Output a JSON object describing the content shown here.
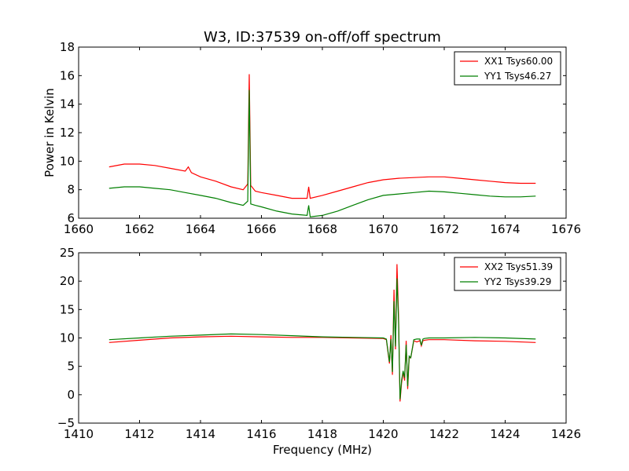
{
  "title": "W3, ID:37539 on-off/off spectrum",
  "colors": {
    "xx": "#ff0000",
    "yy": "#007f00"
  },
  "chart_data": [
    {
      "type": "line",
      "title": "W3, ID:37539 on-off/off spectrum",
      "xlabel": "",
      "ylabel": "Power in Kelvin",
      "xlim": [
        1660,
        1676
      ],
      "ylim": [
        6,
        18
      ],
      "xticks": [
        1660,
        1662,
        1664,
        1666,
        1668,
        1670,
        1672,
        1674,
        1676
      ],
      "yticks": [
        6,
        8,
        10,
        12,
        14,
        16,
        18
      ],
      "legend": "top-right",
      "series": [
        {
          "name": "XX1 Tsys60.00",
          "color": "#ff0000",
          "x": [
            1661.0,
            1661.5,
            1662.0,
            1662.5,
            1663.0,
            1663.5,
            1663.6,
            1663.7,
            1664.0,
            1664.5,
            1665.0,
            1665.4,
            1665.55,
            1665.6,
            1665.65,
            1665.8,
            1666.0,
            1666.5,
            1667.0,
            1667.5,
            1667.55,
            1667.6,
            1668.0,
            1668.5,
            1669.0,
            1669.5,
            1670.0,
            1670.5,
            1671.0,
            1671.5,
            1672.0,
            1672.5,
            1673.0,
            1673.5,
            1674.0,
            1674.5,
            1675.0
          ],
          "y": [
            9.6,
            9.8,
            9.8,
            9.7,
            9.5,
            9.3,
            9.6,
            9.2,
            8.9,
            8.6,
            8.2,
            8.0,
            8.4,
            16.1,
            8.3,
            7.9,
            7.8,
            7.6,
            7.4,
            7.4,
            8.2,
            7.4,
            7.6,
            7.9,
            8.2,
            8.5,
            8.7,
            8.8,
            8.85,
            8.9,
            8.9,
            8.8,
            8.7,
            8.6,
            8.5,
            8.45,
            8.45
          ]
        },
        {
          "name": "YY1 Tsys46.27",
          "color": "#007f00",
          "x": [
            1661.0,
            1661.5,
            1662.0,
            1662.5,
            1663.0,
            1663.5,
            1664.0,
            1664.5,
            1665.0,
            1665.4,
            1665.55,
            1665.6,
            1665.65,
            1665.8,
            1666.0,
            1666.5,
            1667.0,
            1667.5,
            1667.55,
            1667.6,
            1668.0,
            1668.5,
            1669.0,
            1669.5,
            1670.0,
            1670.5,
            1671.0,
            1671.5,
            1672.0,
            1672.5,
            1673.0,
            1673.5,
            1674.0,
            1674.5,
            1675.0
          ],
          "y": [
            8.1,
            8.2,
            8.2,
            8.1,
            8.0,
            7.8,
            7.6,
            7.4,
            7.1,
            6.9,
            7.2,
            15.0,
            7.0,
            6.9,
            6.8,
            6.5,
            6.3,
            6.2,
            6.9,
            6.1,
            6.2,
            6.5,
            6.9,
            7.3,
            7.6,
            7.7,
            7.8,
            7.9,
            7.85,
            7.75,
            7.65,
            7.55,
            7.5,
            7.5,
            7.55
          ]
        }
      ]
    },
    {
      "type": "line",
      "title": "",
      "xlabel": "Frequency (MHz)",
      "ylabel": "",
      "xlim": [
        1410,
        1426
      ],
      "ylim": [
        -5,
        25
      ],
      "xticks": [
        1410,
        1412,
        1414,
        1416,
        1418,
        1420,
        1422,
        1424,
        1426
      ],
      "yticks": [
        -5,
        0,
        5,
        10,
        15,
        20,
        25
      ],
      "legend": "top-right",
      "series": [
        {
          "name": "XX2 Tsys51.39",
          "color": "#ff0000",
          "x": [
            1411.0,
            1412.0,
            1413.0,
            1414.0,
            1415.0,
            1416.0,
            1417.0,
            1418.0,
            1419.0,
            1420.0,
            1420.1,
            1420.2,
            1420.25,
            1420.3,
            1420.35,
            1420.4,
            1420.45,
            1420.5,
            1420.55,
            1420.6,
            1420.65,
            1420.7,
            1420.75,
            1420.8,
            1420.85,
            1420.9,
            1421.0,
            1421.1,
            1421.2,
            1421.25,
            1421.3,
            1421.35,
            1421.5,
            1422.0,
            1423.0,
            1424.0,
            1425.0
          ],
          "y": [
            9.2,
            9.6,
            10.0,
            10.2,
            10.3,
            10.2,
            10.1,
            10.1,
            10.0,
            9.9,
            9.7,
            5.5,
            10.5,
            3.5,
            18.5,
            8.0,
            23.0,
            14.0,
            -1.2,
            2.0,
            4.0,
            2.5,
            9.5,
            1.0,
            6.5,
            6.5,
            9.5,
            9.3,
            9.5,
            8.6,
            9.5,
            9.6,
            9.7,
            9.7,
            9.5,
            9.4,
            9.2
          ]
        },
        {
          "name": "YY2 Tsys39.29",
          "color": "#007f00",
          "x": [
            1411.0,
            1412.0,
            1413.0,
            1414.0,
            1415.0,
            1416.0,
            1417.0,
            1418.0,
            1419.0,
            1420.0,
            1420.1,
            1420.2,
            1420.25,
            1420.3,
            1420.35,
            1420.4,
            1420.45,
            1420.5,
            1420.55,
            1420.6,
            1420.65,
            1420.7,
            1420.75,
            1420.8,
            1420.85,
            1420.9,
            1421.0,
            1421.1,
            1421.2,
            1421.25,
            1421.3,
            1421.35,
            1421.5,
            1422.0,
            1423.0,
            1424.0,
            1425.0
          ],
          "y": [
            9.7,
            10.0,
            10.3,
            10.5,
            10.7,
            10.6,
            10.4,
            10.2,
            10.1,
            10.0,
            9.8,
            5.8,
            9.8,
            4.0,
            16.5,
            8.5,
            20.5,
            13.0,
            -0.8,
            2.5,
            4.2,
            3.0,
            8.8,
            1.5,
            6.8,
            6.5,
            9.7,
            9.8,
            9.8,
            8.7,
            9.8,
            9.9,
            10.0,
            10.0,
            10.1,
            10.0,
            9.8
          ]
        }
      ]
    }
  ]
}
